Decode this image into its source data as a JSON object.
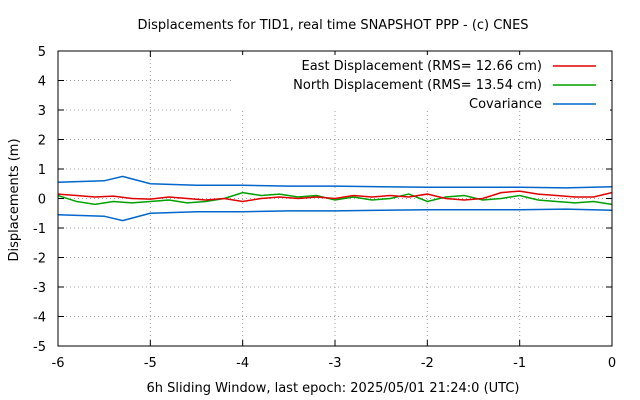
{
  "chart_data": {
    "type": "line",
    "title": "Displacements for TID1, real time SNAPSHOT PPP - (c) CNES",
    "xlabel": "6h Sliding Window, last epoch: 2025/05/01 21:24:0 (UTC)",
    "ylabel": "Displacements (m)",
    "xlim": [
      -6,
      0
    ],
    "ylim": [
      -5,
      5
    ],
    "xticks": [
      "-6",
      "-5",
      "-4",
      "-3",
      "-2",
      "-1",
      "0"
    ],
    "yticks": [
      "-5",
      "-4",
      "-3",
      "-2",
      "-1",
      "0",
      "1",
      "2",
      "3",
      "4",
      "5"
    ],
    "grid": true,
    "legend_position": "top-right",
    "series": [
      {
        "name": "East Displacement (RMS= 12.66 cm)",
        "color": "#e00000",
        "x": [
          -6.0,
          -5.8,
          -5.6,
          -5.4,
          -5.2,
          -5.0,
          -4.8,
          -4.6,
          -4.4,
          -4.2,
          -4.0,
          -3.8,
          -3.6,
          -3.4,
          -3.2,
          -3.0,
          -2.8,
          -2.6,
          -2.4,
          -2.2,
          -2.0,
          -1.8,
          -1.6,
          -1.4,
          -1.2,
          -1.0,
          -0.8,
          -0.6,
          -0.4,
          -0.2,
          0.0
        ],
        "y": [
          0.15,
          0.1,
          0.05,
          0.08,
          0.0,
          -0.02,
          0.05,
          0.0,
          -0.05,
          0.0,
          -0.1,
          0.0,
          0.05,
          0.0,
          0.05,
          0.0,
          0.1,
          0.05,
          0.1,
          0.05,
          0.15,
          0.0,
          -0.05,
          0.0,
          0.2,
          0.25,
          0.15,
          0.1,
          0.05,
          0.05,
          0.2
        ]
      },
      {
        "name": "North Displacement (RMS= 13.54 cm)",
        "color": "#00a000",
        "x": [
          -6.0,
          -5.8,
          -5.6,
          -5.4,
          -5.2,
          -5.0,
          -4.8,
          -4.6,
          -4.4,
          -4.2,
          -4.0,
          -3.8,
          -3.6,
          -3.4,
          -3.2,
          -3.0,
          -2.8,
          -2.6,
          -2.4,
          -2.2,
          -2.0,
          -1.8,
          -1.6,
          -1.4,
          -1.2,
          -1.0,
          -0.8,
          -0.6,
          -0.4,
          -0.2,
          0.0
        ],
        "y": [
          0.1,
          -0.1,
          -0.2,
          -0.1,
          -0.15,
          -0.1,
          -0.05,
          -0.15,
          -0.1,
          0.0,
          0.2,
          0.1,
          0.15,
          0.05,
          0.1,
          -0.05,
          0.05,
          -0.05,
          0.0,
          0.15,
          -0.1,
          0.05,
          0.1,
          -0.05,
          0.0,
          0.1,
          -0.05,
          -0.1,
          -0.15,
          -0.1,
          -0.2
        ]
      },
      {
        "name": "Covariance",
        "color": "#0066cc",
        "x": [
          -6.0,
          -5.5,
          -5.3,
          -5.0,
          -4.5,
          -4.0,
          -3.5,
          -3.0,
          -2.5,
          -2.0,
          -1.5,
          -1.0,
          -0.5,
          0.0
        ],
        "y_upper": [
          0.55,
          0.6,
          0.75,
          0.5,
          0.45,
          0.45,
          0.42,
          0.42,
          0.4,
          0.38,
          0.38,
          0.38,
          0.36,
          0.4
        ],
        "y_lower": [
          -0.55,
          -0.6,
          -0.75,
          -0.5,
          -0.45,
          -0.45,
          -0.42,
          -0.42,
          -0.4,
          -0.38,
          -0.38,
          -0.38,
          -0.36,
          -0.4
        ]
      }
    ]
  }
}
